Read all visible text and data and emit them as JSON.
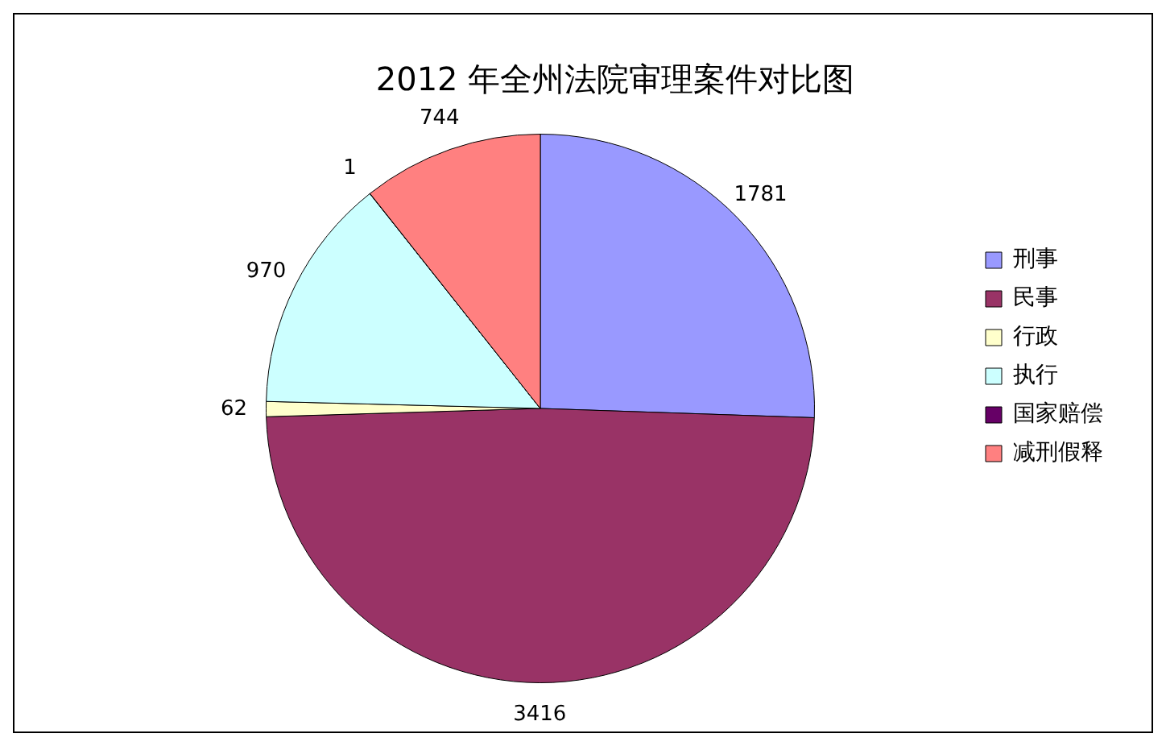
{
  "chart_data": {
    "type": "pie",
    "title": "2012 年全州法院审理案件对比图",
    "categories": [
      "刑事",
      "民事",
      "行政",
      "执行",
      "国家赔偿",
      "减刑假释"
    ],
    "values": [
      1781,
      3416,
      62,
      970,
      1,
      744
    ],
    "colors": [
      "#9999ff",
      "#993366",
      "#ffffcc",
      "#ccffff",
      "#660066",
      "#ff8080"
    ],
    "data_labels": true,
    "legend": "right"
  }
}
